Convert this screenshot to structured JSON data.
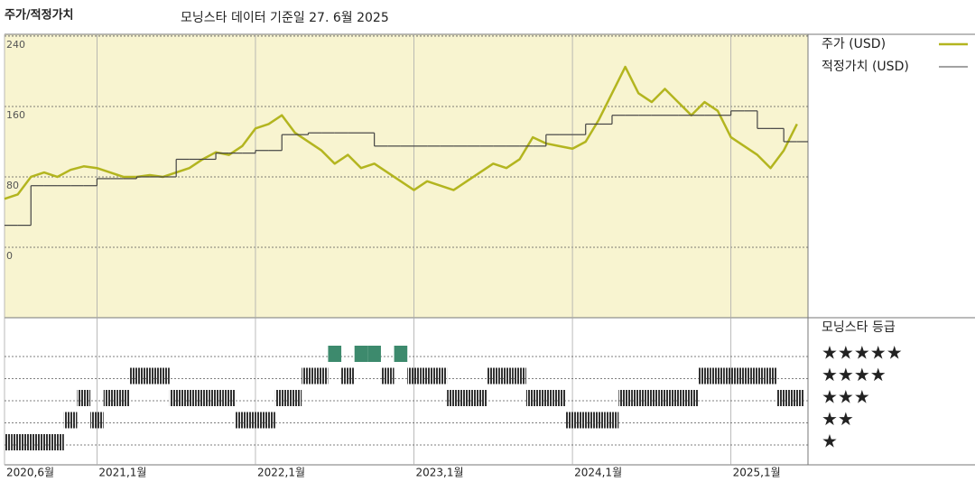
{
  "chart_data": {
    "type": "line",
    "title": "주가/적정가치",
    "subtitle": "모닝스타 데이터 기준일 27. 6월 2025",
    "x": [
      "2020-06",
      "2020-07",
      "2020-08",
      "2020-09",
      "2020-10",
      "2020-11",
      "2020-12",
      "2021-01",
      "2021-02",
      "2021-03",
      "2021-04",
      "2021-05",
      "2021-06",
      "2021-07",
      "2021-08",
      "2021-09",
      "2021-10",
      "2021-11",
      "2021-12",
      "2022-01",
      "2022-02",
      "2022-03",
      "2022-04",
      "2022-05",
      "2022-06",
      "2022-07",
      "2022-08",
      "2022-09",
      "2022-10",
      "2022-11",
      "2022-12",
      "2023-01",
      "2023-02",
      "2023-03",
      "2023-04",
      "2023-05",
      "2023-06",
      "2023-07",
      "2023-08",
      "2023-09",
      "2023-10",
      "2023-11",
      "2023-12",
      "2024-01",
      "2024-02",
      "2024-03",
      "2024-04",
      "2024-05",
      "2024-06",
      "2024-07",
      "2024-08",
      "2024-09",
      "2024-10",
      "2024-11",
      "2024-12",
      "2025-01",
      "2025-02",
      "2025-03",
      "2025-04",
      "2025-05",
      "2025-06"
    ],
    "series": [
      {
        "name": "주가 (USD)",
        "color": "#b3b51f",
        "values": [
          55,
          60,
          80,
          85,
          80,
          88,
          92,
          90,
          85,
          80,
          80,
          82,
          80,
          85,
          90,
          100,
          108,
          105,
          115,
          135,
          140,
          150,
          130,
          120,
          110,
          95,
          105,
          90,
          95,
          85,
          75,
          65,
          75,
          70,
          65,
          75,
          85,
          95,
          90,
          100,
          125,
          118,
          115,
          112,
          120,
          145,
          175,
          205,
          175,
          165,
          180,
          165,
          150,
          165,
          155,
          125,
          115,
          105,
          90,
          110,
          140
        ]
      },
      {
        "name": "적정가치 (USD)",
        "color": "#444444",
        "step": true,
        "values": [
          25,
          25,
          70,
          70,
          70,
          70,
          70,
          78,
          78,
          78,
          80,
          80,
          80,
          100,
          100,
          100,
          107,
          107,
          107,
          110,
          110,
          128,
          128,
          130,
          130,
          130,
          130,
          130,
          115,
          115,
          115,
          115,
          115,
          115,
          115,
          115,
          115,
          115,
          115,
          115,
          115,
          128,
          128,
          128,
          140,
          140,
          150,
          150,
          150,
          150,
          150,
          150,
          150,
          150,
          150,
          155,
          155,
          135,
          135,
          120,
          120
        ]
      }
    ],
    "ylim": [
      -80,
      242
    ],
    "yticks": [
      0,
      80,
      160,
      240
    ],
    "grid": true,
    "xticks": [
      {
        "value": "2020-06",
        "label": "2020,6월"
      },
      {
        "value": "2021-01",
        "label": "2021,1월"
      },
      {
        "value": "2022-01",
        "label": "2022,1월"
      },
      {
        "value": "2023-01",
        "label": "2023,1월"
      },
      {
        "value": "2024-01",
        "label": "2024,1월"
      },
      {
        "value": "2025-01",
        "label": "2025,1월"
      }
    ],
    "rating": {
      "title": "모닝스타 등급",
      "levels": [
        1,
        2,
        3,
        4,
        5
      ],
      "level_labels": [
        "★",
        "★★",
        "★★★",
        "★★★★",
        "★★★★★"
      ],
      "colors": {
        "top": "#3d8a6d",
        "other": "#333333"
      },
      "values": [
        1,
        1,
        1,
        1,
        1,
        2,
        3,
        2,
        3,
        3,
        4,
        4,
        4,
        3,
        3,
        3,
        3,
        3,
        2,
        2,
        2,
        3,
        3,
        4,
        4,
        5,
        4,
        5,
        5,
        4,
        5,
        4,
        4,
        4,
        3,
        3,
        3,
        4,
        4,
        4,
        3,
        3,
        3,
        2,
        2,
        2,
        2,
        3,
        3,
        3,
        3,
        3,
        3,
        4,
        4,
        4,
        4,
        4,
        4,
        3,
        3
      ]
    }
  }
}
